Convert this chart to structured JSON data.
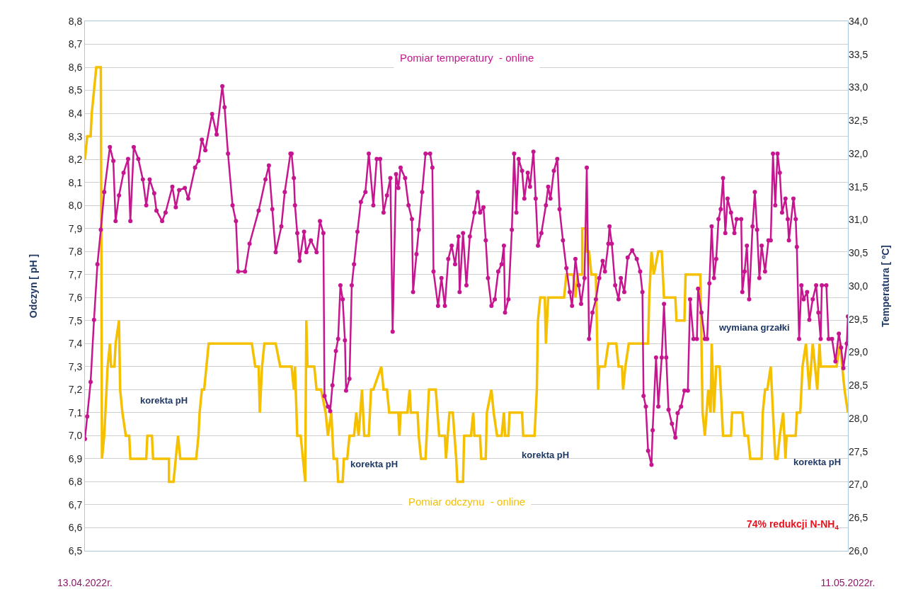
{
  "chart_data": {
    "type": "line",
    "ylabel": "Odczyn [ pH ]",
    "y2label": "Temperatura [ ºC]",
    "xlim": [
      "2022-04-13",
      "2022-05-11"
    ],
    "xticks": [
      {
        "value": "2022-04-13",
        "label": "13.04.2022r."
      },
      {
        "value": "2022-05-11",
        "label": "11.05.2022r."
      }
    ],
    "ylim": [
      6.5,
      8.8
    ],
    "yticks": [
      {
        "value": 6.5,
        "label": "6,5"
      },
      {
        "value": 6.6,
        "label": "6,6"
      },
      {
        "value": 6.7,
        "label": "6,7"
      },
      {
        "value": 6.8,
        "label": "6,8"
      },
      {
        "value": 6.9,
        "label": "6,9"
      },
      {
        "value": 7.0,
        "label": "7,0"
      },
      {
        "value": 7.1,
        "label": "7,1"
      },
      {
        "value": 7.2,
        "label": "7,2"
      },
      {
        "value": 7.3,
        "label": "7,3"
      },
      {
        "value": 7.4,
        "label": "7,4"
      },
      {
        "value": 7.5,
        "label": "7,5"
      },
      {
        "value": 7.6,
        "label": "7,6"
      },
      {
        "value": 7.7,
        "label": "7,7"
      },
      {
        "value": 7.8,
        "label": "7,8"
      },
      {
        "value": 7.9,
        "label": "7,9"
      },
      {
        "value": 8.0,
        "label": "8,0"
      },
      {
        "value": 8.1,
        "label": "8,1"
      },
      {
        "value": 8.2,
        "label": "8,2"
      },
      {
        "value": 8.3,
        "label": "8,3"
      },
      {
        "value": 8.4,
        "label": "8,4"
      },
      {
        "value": 8.5,
        "label": "8,5"
      },
      {
        "value": 8.6,
        "label": "8,6"
      },
      {
        "value": 8.7,
        "label": "8,7"
      },
      {
        "value": 8.8,
        "label": "8,8"
      }
    ],
    "y2lim": [
      26,
      34
    ],
    "y2ticks": [
      {
        "value": 26,
        "label": "26,0"
      },
      {
        "value": 26.5,
        "label": "26,5"
      },
      {
        "value": 27,
        "label": "27,0"
      },
      {
        "value": 27.5,
        "label": "27,5"
      },
      {
        "value": 28,
        "label": "28,0"
      },
      {
        "value": 28.5,
        "label": "28,5"
      },
      {
        "value": 29,
        "label": "29,0"
      },
      {
        "value": 29.5,
        "label": "29,5"
      },
      {
        "value": 30,
        "label": "30,0"
      },
      {
        "value": 30.5,
        "label": "30,5"
      },
      {
        "value": 31,
        "label": "31,0"
      },
      {
        "value": 31.5,
        "label": "31,5"
      },
      {
        "value": 32,
        "label": "32,0"
      },
      {
        "value": 32.5,
        "label": "32,5"
      },
      {
        "value": 33,
        "label": "33,0"
      },
      {
        "value": 33.5,
        "label": "33,5"
      },
      {
        "value": 34,
        "label": "34,0"
      }
    ],
    "grid": "y",
    "legend": false,
    "line_style": "solid",
    "series": [
      {
        "name": "Pomiar odczynu  - online",
        "color": "#f5c000",
        "marker": "none",
        "x": [
          "2022-04-13T00:00",
          "2022-04-13T02:00",
          "2022-04-13T05:00",
          "2022-04-13T06:00",
          "2022-04-13T08:00",
          "2022-04-13T10:00",
          "2022-04-13T14:00",
          "2022-04-13T15:00",
          "2022-04-13T17:00",
          "2022-04-13T19:00",
          "2022-04-13T20:00",
          "2022-04-13T22:00",
          "2022-04-13T23:00",
          "2022-04-14T02:00",
          "2022-04-14T03:00",
          "2022-04-14T06:00",
          "2022-04-14T07:00",
          "2022-04-14T09:00",
          "2022-04-14T12:00",
          "2022-04-14T15:00",
          "2022-04-14T16:00",
          "2022-04-15T06:00",
          "2022-04-15T07:00",
          "2022-04-15T11:00",
          "2022-04-15T12:00",
          "2022-04-16T02:00",
          "2022-04-16T02:00",
          "2022-04-16T06:00",
          "2022-04-16T08:00",
          "2022-04-16T10:00",
          "2022-04-16T12:00",
          "2022-04-17T02:00",
          "2022-04-17T04:00",
          "2022-04-17T05:00",
          "2022-04-17T07:00",
          "2022-04-17T09:00",
          "2022-04-17T11:00",
          "2022-04-17T13:00",
          "2022-04-19T03:00",
          "2022-04-19T06:00",
          "2022-04-19T09:00",
          "2022-04-19T10:00",
          "2022-04-19T12:00",
          "2022-04-19T14:00",
          "2022-04-20T00:00",
          "2022-04-20T04:00",
          "2022-04-20T14:00",
          "2022-04-20T16:00",
          "2022-04-20T17:00",
          "2022-04-20T19:00",
          "2022-04-20T22:00",
          "2022-04-21T00:00",
          "2022-04-21T02:00",
          "2022-04-21T03:00",
          "2022-04-21T04:00",
          "2022-04-21T10:00",
          "2022-04-21T12:00",
          "2022-04-21T16:00",
          "2022-04-21T20:00",
          "2022-04-21T22:00",
          "2022-04-22T01:00",
          "2022-04-22T03:00",
          "2022-04-22T06:00",
          "2022-04-22T07:00",
          "2022-04-22T11:00",
          "2022-04-22T12:00",
          "2022-04-22T15:00",
          "2022-04-22T17:00",
          "2022-04-22T21:00",
          "2022-04-22T23:00",
          "2022-04-23T01:00",
          "2022-04-23T04:00",
          "2022-04-23T06:00",
          "2022-04-23T10:00",
          "2022-04-23T12:00",
          "2022-04-23T14:00",
          "2022-04-23T21:00",
          "2022-04-23T23:00",
          "2022-04-24T02:00",
          "2022-04-24T04:00",
          "2022-04-24T12:00",
          "2022-04-24T13:00",
          "2022-04-24T14:00",
          "2022-04-24T20:00",
          "2022-04-24T22:00",
          "2022-04-24T23:00",
          "2022-04-25T05:00",
          "2022-04-25T06:00",
          "2022-04-25T08:00",
          "2022-04-25T12:00",
          "2022-04-25T13:00",
          "2022-04-25T15:00",
          "2022-04-25T21:00",
          "2022-04-26T00:00",
          "2022-04-26T05:00",
          "2022-04-26T06:00",
          "2022-04-26T09:00",
          "2022-04-26T12:00",
          "2022-04-26T15:00",
          "2022-04-26T16:00",
          "2022-04-26T21:00",
          "2022-04-26T22:00",
          "2022-04-27T04:00",
          "2022-04-27T06:00",
          "2022-04-27T07:00",
          "2022-04-27T12:00",
          "2022-04-27T13:00",
          "2022-04-27T17:00",
          "2022-04-27T18:00",
          "2022-04-27T22:00",
          "2022-04-28T00:00",
          "2022-04-28T03:00",
          "2022-04-28T07:00",
          "2022-04-28T09:00",
          "2022-04-28T10:00",
          "2022-04-28T13:00",
          "2022-04-28T14:00",
          "2022-04-29T01:00",
          "2022-04-29T02:00",
          "2022-04-29T12:00",
          "2022-04-29T14:00",
          "2022-04-29T15:00",
          "2022-04-29T17:00",
          "2022-04-29T21:00",
          "2022-04-29T22:00",
          "2022-04-30T00:00",
          "2022-04-30T14:00",
          "2022-04-30T16:00",
          "2022-04-30T22:00",
          "2022-05-01T00:00",
          "2022-05-01T02:00",
          "2022-05-01T06:00",
          "2022-05-01T06:00",
          "2022-05-01T09:00",
          "2022-05-01T10:00",
          "2022-05-01T12:00",
          "2022-05-01T14:00",
          "2022-05-01T18:00",
          "2022-05-01T20:00",
          "2022-05-01T21:00",
          "2022-05-02T02:00",
          "2022-05-02T05:00",
          "2022-05-02T12:00",
          "2022-05-02T14:00",
          "2022-05-02T17:00",
          "2022-05-02T18:00",
          "2022-05-02T20:00",
          "2022-05-02T23:00",
          "2022-05-03T16:00",
          "2022-05-03T17:00",
          "2022-05-03T19:00",
          "2022-05-03T21:00",
          "2022-05-04T01:00",
          "2022-05-04T04:00",
          "2022-05-04T06:00",
          "2022-05-04T16:00",
          "2022-05-04T17:00",
          "2022-05-05T00:00",
          "2022-05-05T01:00",
          "2022-05-05T14:00",
          "2022-05-05T16:00",
          "2022-05-05T18:00",
          "2022-05-05T21:00",
          "2022-05-05T23:00",
          "2022-05-06T00:00",
          "2022-05-06T02:00",
          "2022-05-06T04:00",
          "2022-05-06T07:00",
          "2022-05-06T10:00",
          "2022-05-06T17:00",
          "2022-05-06T18:00",
          "2022-05-07T03:00",
          "2022-05-07T05:00",
          "2022-05-07T08:00",
          "2022-05-07T10:00",
          "2022-05-07T20:00",
          "2022-05-07T21:00",
          "2022-05-07T23:00",
          "2022-05-08T01:00",
          "2022-05-08T04:00",
          "2022-05-08T06:00",
          "2022-05-08T08:00",
          "2022-05-08T10:00",
          "2022-05-08T12:00",
          "2022-05-08T15:00",
          "2022-05-08T17:00",
          "2022-05-08T18:00",
          "2022-05-09T02:00",
          "2022-05-09T03:00",
          "2022-05-09T06:00",
          "2022-05-09T08:00",
          "2022-05-09T11:00",
          "2022-05-09T14:00",
          "2022-05-09T17:00",
          "2022-05-09T21:00",
          "2022-05-09T23:00",
          "2022-05-10T00:00",
          "2022-05-10T10:00",
          "2022-05-10T14:00",
          "2022-05-10T17:00",
          "2022-05-10T19:00",
          "2022-05-10T21:00",
          "2022-05-11T00:00"
        ],
        "values": [
          8.2,
          8.3,
          8.3,
          8.4,
          8.5,
          8.6,
          8.6,
          6.9,
          7.0,
          7.2,
          7.3,
          7.4,
          7.3,
          7.3,
          7.4,
          7.5,
          7.2,
          7.1,
          7.0,
          7.0,
          6.9,
          6.9,
          7.0,
          7.0,
          6.9,
          6.9,
          6.8,
          6.8,
          6.9,
          7.0,
          6.9,
          6.9,
          7.0,
          7.1,
          7.2,
          7.2,
          7.3,
          7.4,
          7.4,
          7.3,
          7.3,
          7.1,
          7.3,
          7.4,
          7.4,
          7.3,
          7.3,
          7.2,
          7.3,
          7.0,
          7.0,
          6.9,
          6.8,
          7.5,
          7.3,
          7.3,
          7.2,
          7.2,
          7.1,
          7.0,
          7.1,
          6.9,
          6.9,
          6.8,
          6.8,
          6.9,
          6.9,
          7.0,
          7.0,
          7.1,
          7.0,
          7.2,
          7.0,
          7.0,
          7.2,
          7.2,
          7.3,
          7.2,
          7.2,
          7.1,
          7.1,
          7.0,
          7.1,
          7.1,
          7.2,
          7.1,
          7.1,
          7.0,
          6.9,
          6.9,
          7.0,
          7.2,
          7.2,
          7.0,
          7.0,
          6.9,
          7.1,
          7.1,
          6.9,
          6.8,
          6.8,
          7.0,
          7.0,
          7.1,
          7.0,
          7.0,
          6.9,
          6.9,
          7.1,
          7.2,
          7.1,
          7.0,
          7.0,
          7.1,
          7.0,
          7.0,
          7.1,
          7.1,
          7.0,
          7.0,
          7.2,
          7.5,
          7.6,
          7.6,
          7.4,
          7.6,
          7.6,
          7.7,
          7.7,
          7.6,
          7.7,
          7.7,
          7.9,
          7.9,
          7.8,
          7.8,
          7.7,
          7.7,
          7.2,
          7.3,
          7.3,
          7.4,
          7.4,
          7.3,
          7.3,
          7.2,
          7.3,
          7.4,
          7.4,
          7.6,
          7.8,
          7.7,
          7.8,
          7.8,
          7.6,
          7.6,
          7.5,
          7.5,
          7.7,
          7.7,
          7.1,
          7.0,
          7.2,
          7.1,
          7.4,
          7.1,
          7.3,
          7.3,
          7.0,
          7.0,
          7.1,
          7.1,
          7.0,
          7.0,
          6.9,
          6.9,
          7.1,
          7.2,
          7.2,
          7.3,
          7.1,
          6.9,
          6.9,
          7.0,
          7.1,
          6.9,
          7.0,
          7.0,
          7.1,
          7.1,
          7.3,
          7.4,
          7.2,
          7.4,
          7.2,
          7.4,
          7.3,
          7.3,
          7.3,
          7.4,
          7.3,
          7.2,
          7.1
        ]
      },
      {
        "name": "Pomiar temperatury  - online",
        "color": "#c5168f",
        "marker": "circle",
        "axis": "y2",
        "x": [
          "2022-04-13T00:00",
          "2022-04-13T02:00",
          "2022-04-13T05:00",
          "2022-04-13T08:00",
          "2022-04-13T11:00",
          "2022-04-13T14:00",
          "2022-04-13T17:00",
          "2022-04-13T22:00",
          "2022-04-14T01:00",
          "2022-04-14T03:00",
          "2022-04-14T06:00",
          "2022-04-14T10:00",
          "2022-04-14T14:00",
          "2022-04-14T16:00",
          "2022-04-14T19:00",
          "2022-04-14T23:00",
          "2022-04-15T03:00",
          "2022-04-15T06:00",
          "2022-04-15T09:00",
          "2022-04-15T13:00",
          "2022-04-15T15:00",
          "2022-04-15T20:00",
          "2022-04-15T23:00",
          "2022-04-16T05:00",
          "2022-04-16T08:00",
          "2022-04-16T11:00",
          "2022-04-16T16:00",
          "2022-04-16T19:00",
          "2022-04-17T01:00",
          "2022-04-17T04:00",
          "2022-04-17T07:00",
          "2022-04-17T10:00",
          "2022-04-17T16:00",
          "2022-04-17T20:00",
          "2022-04-18T01:00",
          "2022-04-18T03:00",
          "2022-04-18T06:00",
          "2022-04-18T10:00",
          "2022-04-18T13:00",
          "2022-04-18T15:00",
          "2022-04-18T21:00",
          "2022-04-19T01:00",
          "2022-04-19T09:00",
          "2022-04-19T15:00",
          "2022-04-19T18:00",
          "2022-04-19T21:00",
          "2022-04-20T00:00",
          "2022-04-20T05:00",
          "2022-04-20T08:00",
          "2022-04-20T13:00",
          "2022-04-20T14:00",
          "2022-04-20T16:00",
          "2022-04-20T17:00",
          "2022-04-20T19:00",
          "2022-04-20T21:00",
          "2022-04-21T01:00",
          "2022-04-21T03:00",
          "2022-04-21T07:00",
          "2022-04-21T12:00",
          "2022-04-21T15:00",
          "2022-04-21T18:00",
          "2022-04-21T19:00",
          "2022-04-21T22:00",
          "2022-04-22T00:00",
          "2022-04-22T02:00",
          "2022-04-22T05:00",
          "2022-04-22T07:00",
          "2022-04-22T09:00",
          "2022-04-22T11:00",
          "2022-04-22T13:00",
          "2022-04-22T14:00",
          "2022-04-22T17:00",
          "2022-04-22T19:00",
          "2022-04-22T21:00",
          "2022-04-23T00:00",
          "2022-04-23T03:00",
          "2022-04-23T07:00",
          "2022-04-23T10:00",
          "2022-04-23T14:00",
          "2022-04-23T17:00",
          "2022-04-23T20:00",
          "2022-04-23T23:00",
          "2022-04-24T02:00",
          "2022-04-24T05:00",
          "2022-04-24T07:00",
          "2022-04-24T10:00",
          "2022-04-24T12:00",
          "2022-04-24T14:00",
          "2022-04-24T18:00",
          "2022-04-24T21:00",
          "2022-04-25T00:00",
          "2022-04-25T01:00",
          "2022-04-25T04:00",
          "2022-04-25T06:00",
          "2022-04-25T09:00",
          "2022-04-25T12:00",
          "2022-04-25T16:00",
          "2022-04-25T18:00",
          "2022-04-25T19:00",
          "2022-04-25T23:00",
          "2022-04-26T02:00",
          "2022-04-26T05:00",
          "2022-04-26T08:00",
          "2022-04-26T11:00",
          "2022-04-26T14:00",
          "2022-04-26T17:00",
          "2022-04-26T18:00",
          "2022-04-26T21:00",
          "2022-04-27T00:00",
          "2022-04-27T03:00",
          "2022-04-27T07:00",
          "2022-04-27T10:00",
          "2022-04-27T12:00",
          "2022-04-27T15:00",
          "2022-04-27T17:00",
          "2022-04-27T19:00",
          "2022-04-27T22:00",
          "2022-04-28T01:00",
          "2022-04-28T04:00",
          "2022-04-28T07:00",
          "2022-04-28T09:00",
          "2022-04-28T10:00",
          "2022-04-28T13:00",
          "2022-04-28T16:00",
          "2022-04-28T18:00",
          "2022-04-28T20:00",
          "2022-04-28T22:00",
          "2022-04-29T01:00",
          "2022-04-29T03:00",
          "2022-04-29T06:00",
          "2022-04-29T08:00",
          "2022-04-29T11:00",
          "2022-04-29T13:00",
          "2022-04-29T15:00",
          "2022-04-29T18:00",
          "2022-04-29T22:00",
          "2022-04-30T00:00",
          "2022-04-30T02:00",
          "2022-04-30T05:00",
          "2022-04-30T08:00",
          "2022-04-30T10:00",
          "2022-04-30T13:00",
          "2022-04-30T16:00",
          "2022-04-30T19:00",
          "2022-04-30T21:00",
          "2022-05-01T00:00",
          "2022-05-01T03:00",
          "2022-05-01T05:00",
          "2022-05-01T08:00",
          "2022-05-01T10:00",
          "2022-05-01T12:00",
          "2022-05-01T15:00",
          "2022-05-01T18:00",
          "2022-05-01T21:00",
          "2022-05-02T00:00",
          "2022-05-02T02:00",
          "2022-05-02T05:00",
          "2022-05-02T06:00",
          "2022-05-02T08:00",
          "2022-05-02T11:00",
          "2022-05-02T14:00",
          "2022-05-02T16:00",
          "2022-05-02T19:00",
          "2022-05-02T22:00",
          "2022-05-03T02:00",
          "2022-05-03T06:00",
          "2022-05-03T09:00",
          "2022-05-03T11:00",
          "2022-05-03T12:00",
          "2022-05-03T14:00",
          "2022-05-03T16:00",
          "2022-05-03T19:00",
          "2022-05-03T20:00",
          "2022-05-03T23:00",
          "2022-05-04T01:00",
          "2022-05-04T04:00",
          "2022-05-04T06:00",
          "2022-05-04T08:00",
          "2022-05-04T10:00",
          "2022-05-04T13:00",
          "2022-05-04T16:00",
          "2022-05-04T18:00",
          "2022-05-04T21:00",
          "2022-05-05T00:00",
          "2022-05-05T03:00",
          "2022-05-05T05:00",
          "2022-05-05T08:00",
          "2022-05-05T11:00",
          "2022-05-05T12:00",
          "2022-05-05T15:00",
          "2022-05-05T18:00",
          "2022-05-05T20:00",
          "2022-05-05T22:00",
          "2022-05-06T00:00",
          "2022-05-06T02:00",
          "2022-05-06T04:00",
          "2022-05-06T06:00",
          "2022-05-06T08:00",
          "2022-05-06T10:00",
          "2022-05-06T12:00",
          "2022-05-06T14:00",
          "2022-05-06T17:00",
          "2022-05-06T20:00",
          "2022-05-06T22:00",
          "2022-05-07T02:00",
          "2022-05-07T03:00",
          "2022-05-07T05:00",
          "2022-05-07T07:00",
          "2022-05-07T09:00",
          "2022-05-07T12:00",
          "2022-05-07T14:00",
          "2022-05-07T16:00",
          "2022-05-07T18:00",
          "2022-05-07T20:00",
          "2022-05-07T23:00",
          "2022-05-08T02:00",
          "2022-05-08T04:00",
          "2022-05-08T06:00",
          "2022-05-08T08:00",
          "2022-05-08T10:00",
          "2022-05-08T12:00",
          "2022-05-08T14:00",
          "2022-05-08T17:00",
          "2022-05-08T19:00",
          "2022-05-08T20:00",
          "2022-05-09T00:00",
          "2022-05-09T02:00",
          "2022-05-09T03:00",
          "2022-05-09T05:00",
          "2022-05-09T07:00",
          "2022-05-09T09:00",
          "2022-05-09T12:00",
          "2022-05-09T14:00",
          "2022-05-09T17:00",
          "2022-05-09T20:00",
          "2022-05-09T22:00",
          "2022-05-10T00:00",
          "2022-05-10T01:00",
          "2022-05-10T05:00",
          "2022-05-10T07:00",
          "2022-05-10T10:00",
          "2022-05-10T13:00",
          "2022-05-10T16:00",
          "2022-05-10T18:00",
          "2022-05-10T20:00",
          "2022-05-10T23:00",
          "2022-05-11T00:00"
        ],
        "values": [
          27.69,
          28.03,
          28.55,
          29.49,
          30.33,
          30.85,
          31.42,
          32.1,
          31.89,
          30.98,
          31.37,
          31.71,
          31.92,
          30.98,
          32.1,
          31.92,
          31.61,
          31.22,
          31.61,
          31.4,
          31.14,
          30.98,
          31.11,
          31.5,
          31.19,
          31.45,
          31.48,
          31.32,
          31.79,
          31.89,
          32.21,
          32.05,
          32.6,
          32.29,
          33.02,
          32.7,
          32.0,
          31.22,
          30.98,
          30.22,
          30.22,
          30.64,
          31.14,
          31.61,
          31.82,
          31.16,
          30.51,
          30.9,
          31.42,
          32.0,
          32.0,
          31.63,
          31.22,
          30.8,
          30.38,
          30.82,
          30.51,
          30.69,
          30.51,
          30.98,
          30.8,
          28.34,
          28.18,
          28.11,
          28.5,
          29.02,
          29.2,
          30.01,
          29.8,
          29.18,
          28.42,
          28.6,
          30.01,
          30.33,
          30.82,
          31.27,
          31.42,
          32.0,
          31.22,
          31.92,
          31.92,
          31.11,
          31.37,
          31.63,
          29.31,
          31.69,
          31.48,
          31.79,
          31.63,
          31.22,
          31.01,
          29.91,
          30.48,
          30.85,
          31.42,
          32.0,
          32.0,
          31.79,
          30.22,
          29.7,
          30.12,
          29.7,
          30.41,
          30.61,
          30.33,
          30.75,
          29.91,
          30.8,
          30.01,
          30.75,
          31.11,
          31.42,
          31.11,
          31.19,
          30.69,
          30.12,
          29.7,
          29.8,
          30.22,
          30.33,
          30.61,
          29.6,
          29.8,
          30.85,
          32.0,
          31.11,
          31.92,
          31.74,
          31.32,
          31.71,
          31.5,
          32.03,
          31.32,
          30.61,
          30.8,
          31.22,
          31.5,
          31.32,
          31.74,
          31.92,
          31.16,
          30.69,
          30.27,
          29.91,
          29.7,
          30.41,
          30.01,
          29.73,
          30.12,
          31.79,
          29.2,
          29.6,
          29.8,
          30.12,
          30.38,
          30.22,
          30.64,
          30.9,
          30.64,
          30.01,
          29.8,
          30.12,
          29.91,
          30.43,
          30.54,
          30.41,
          30.22,
          29.91,
          28.34,
          28.18,
          27.51,
          27.3,
          27.82,
          28.92,
          28.18,
          28.92,
          29.73,
          28.92,
          28.13,
          27.92,
          27.71,
          28.08,
          28.18,
          28.42,
          28.42,
          29.8,
          29.2,
          29.2,
          29.96,
          29.6,
          29.2,
          29.2,
          30.04,
          30.9,
          30.12,
          30.41,
          31.01,
          31.16,
          31.63,
          30.8,
          31.32,
          31.11,
          30.8,
          31.01,
          31.01,
          29.91,
          30.22,
          30.61,
          29.8,
          30.9,
          31.42,
          30.85,
          30.12,
          30.61,
          30.22,
          30.69,
          30.69,
          32.0,
          31.22,
          32.0,
          31.71,
          31.11,
          31.32,
          31.01,
          30.69,
          31.32,
          31.01,
          30.59,
          29.2,
          30.01,
          29.8,
          29.91,
          29.49,
          29.8,
          30.01,
          29.6,
          29.2,
          30.01,
          30.01,
          29.2,
          29.2,
          28.86,
          29.28,
          29.07,
          28.76,
          29.13,
          29.54
        ]
      }
    ],
    "annotations": [
      "korekta pH",
      "korekta pH",
      "korekta pH",
      "wymiana grzałki",
      "korekta pH",
      "74% redukcji N-NH$_{4}$"
    ]
  }
}
